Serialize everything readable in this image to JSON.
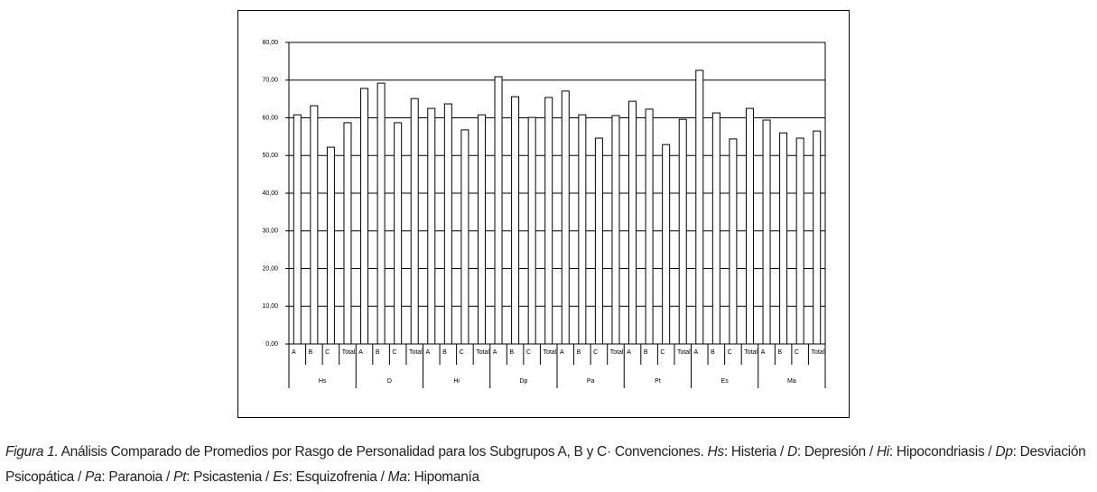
{
  "chart_data": {
    "type": "bar",
    "categories": [
      "A",
      "B",
      "C",
      "Total",
      "A",
      "B",
      "C",
      "Total",
      "A",
      "B",
      "C",
      "Total",
      "A",
      "B",
      "C",
      "Total",
      "A",
      "B",
      "C",
      "Total",
      "A",
      "B",
      "C",
      "Total",
      "A",
      "B",
      "C",
      "Total",
      "A",
      "B",
      "C",
      "Total"
    ],
    "groups": [
      "Hs",
      "D",
      "Hi",
      "Dp",
      "Pa",
      "Pt",
      "Es",
      "Ma"
    ],
    "values": [
      60.8,
      63.2,
      52.2,
      58.7,
      67.8,
      69.2,
      58.7,
      65.1,
      62.5,
      63.7,
      56.8,
      60.8,
      70.9,
      65.6,
      60.1,
      65.4,
      67.1,
      60.8,
      54.6,
      60.6,
      64.4,
      62.3,
      52.9,
      59.6,
      72.6,
      61.3,
      54.4,
      62.5,
      59.4,
      56.0,
      54.6,
      56.5
    ],
    "color": "#ffffff",
    "ylim": [
      0,
      80
    ],
    "yticks": [
      {
        "value": 0,
        "label": "0,00"
      },
      {
        "value": 10,
        "label": "10,00"
      },
      {
        "value": 20,
        "label": "20,00"
      },
      {
        "value": 30,
        "label": "30,00"
      },
      {
        "value": 40,
        "label": "40,00"
      },
      {
        "value": 50,
        "label": "50,00"
      },
      {
        "value": 60,
        "label": "60,00"
      },
      {
        "value": 70,
        "label": "70,00"
      },
      {
        "value": 80,
        "label": "80,00"
      }
    ],
    "grid": true
  },
  "caption": {
    "parts": [
      {
        "text": "Figura 1.",
        "italic": true
      },
      {
        "text": " Análisis Comparado de Promedios por Rasgo de Personalidad para los Subgrupos A, B y C· Convenciones. ",
        "italic": false
      },
      {
        "text": "Hs",
        "italic": true
      },
      {
        "text": ": Histeria / ",
        "italic": false
      },
      {
        "text": "D",
        "italic": true
      },
      {
        "text": ": Depresión / ",
        "italic": false
      },
      {
        "text": "Hi",
        "italic": true
      },
      {
        "text": ": Hipocondriasis / ",
        "italic": false
      },
      {
        "text": "Dp",
        "italic": true
      },
      {
        "text": ": Desviación Psicopática / ",
        "italic": false
      },
      {
        "text": "Pa",
        "italic": true
      },
      {
        "text": ": Paranoia / ",
        "italic": false
      },
      {
        "text": "Pt",
        "italic": true
      },
      {
        "text": ": Psicastenia / ",
        "italic": false
      },
      {
        "text": "Es",
        "italic": true
      },
      {
        "text": ": Esquizofrenia / ",
        "italic": false
      },
      {
        "text": "Ma",
        "italic": true
      },
      {
        "text": ": Hipomanía",
        "italic": false
      }
    ]
  }
}
